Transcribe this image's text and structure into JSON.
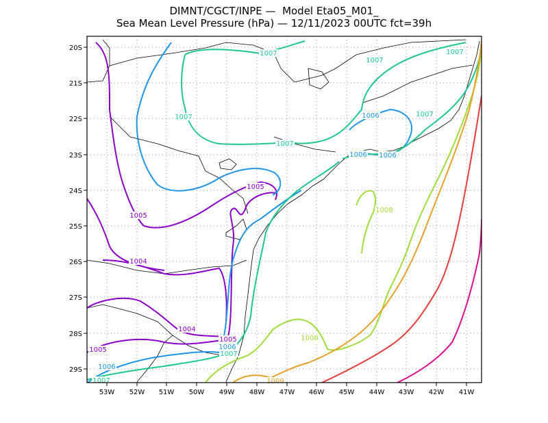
{
  "header": {
    "line1": "DIMNT/CGCT/INPE —  Model Eta05_M01_",
    "line2": "Sea Mean Level Pressure (hPa) — 12/11/2023 00UTC fct=39h"
  },
  "axes": {
    "lon_labels": [
      "53W",
      "52W",
      "51W",
      "50W",
      "49W",
      "48W",
      "47W",
      "46W",
      "45W",
      "44W",
      "43W",
      "42W",
      "41W"
    ],
    "lat_labels": [
      "20S",
      "21S",
      "22S",
      "23S",
      "24S",
      "25S",
      "26S",
      "27S",
      "28S",
      "29S"
    ]
  },
  "contour_colors": {
    "1004": "#8b00c8",
    "1005": "#8b00c8",
    "1006": "#1e96e6",
    "1007": "#1ec88c",
    "1008": "#a0dc3c",
    "1009": "#e6a028",
    "1010": "#e63c3c",
    "1011": "#dc0a8c"
  },
  "contour_labels": [
    {
      "text": "1007",
      "level": "1007"
    },
    {
      "text": "1007",
      "level": "1007"
    },
    {
      "text": "1007",
      "level": "1007"
    },
    {
      "text": "1007",
      "level": "1007"
    },
    {
      "text": "1007",
      "level": "1007"
    },
    {
      "text": "1007",
      "level": "1007"
    },
    {
      "text": "1006",
      "level": "1006"
    },
    {
      "text": "1006",
      "level": "1006"
    },
    {
      "text": "1006",
      "level": "1006"
    },
    {
      "text": "1005",
      "level": "1005"
    },
    {
      "text": "1005",
      "level": "1005"
    },
    {
      "text": "1004",
      "level": "1004"
    },
    {
      "text": "1004",
      "level": "1004"
    },
    {
      "text": "1005",
      "level": "1005"
    },
    {
      "text": "1005",
      "level": "1005"
    },
    {
      "text": "1006",
      "level": "1006"
    },
    {
      "text": "1006",
      "level": "1006"
    },
    {
      "text": "1007",
      "level": "1007"
    },
    {
      "text": "1007",
      "level": "1007"
    },
    {
      "text": "1008",
      "level": "1008"
    },
    {
      "text": "1008",
      "level": "1008"
    },
    {
      "text": "1009",
      "level": "1009"
    }
  ]
}
